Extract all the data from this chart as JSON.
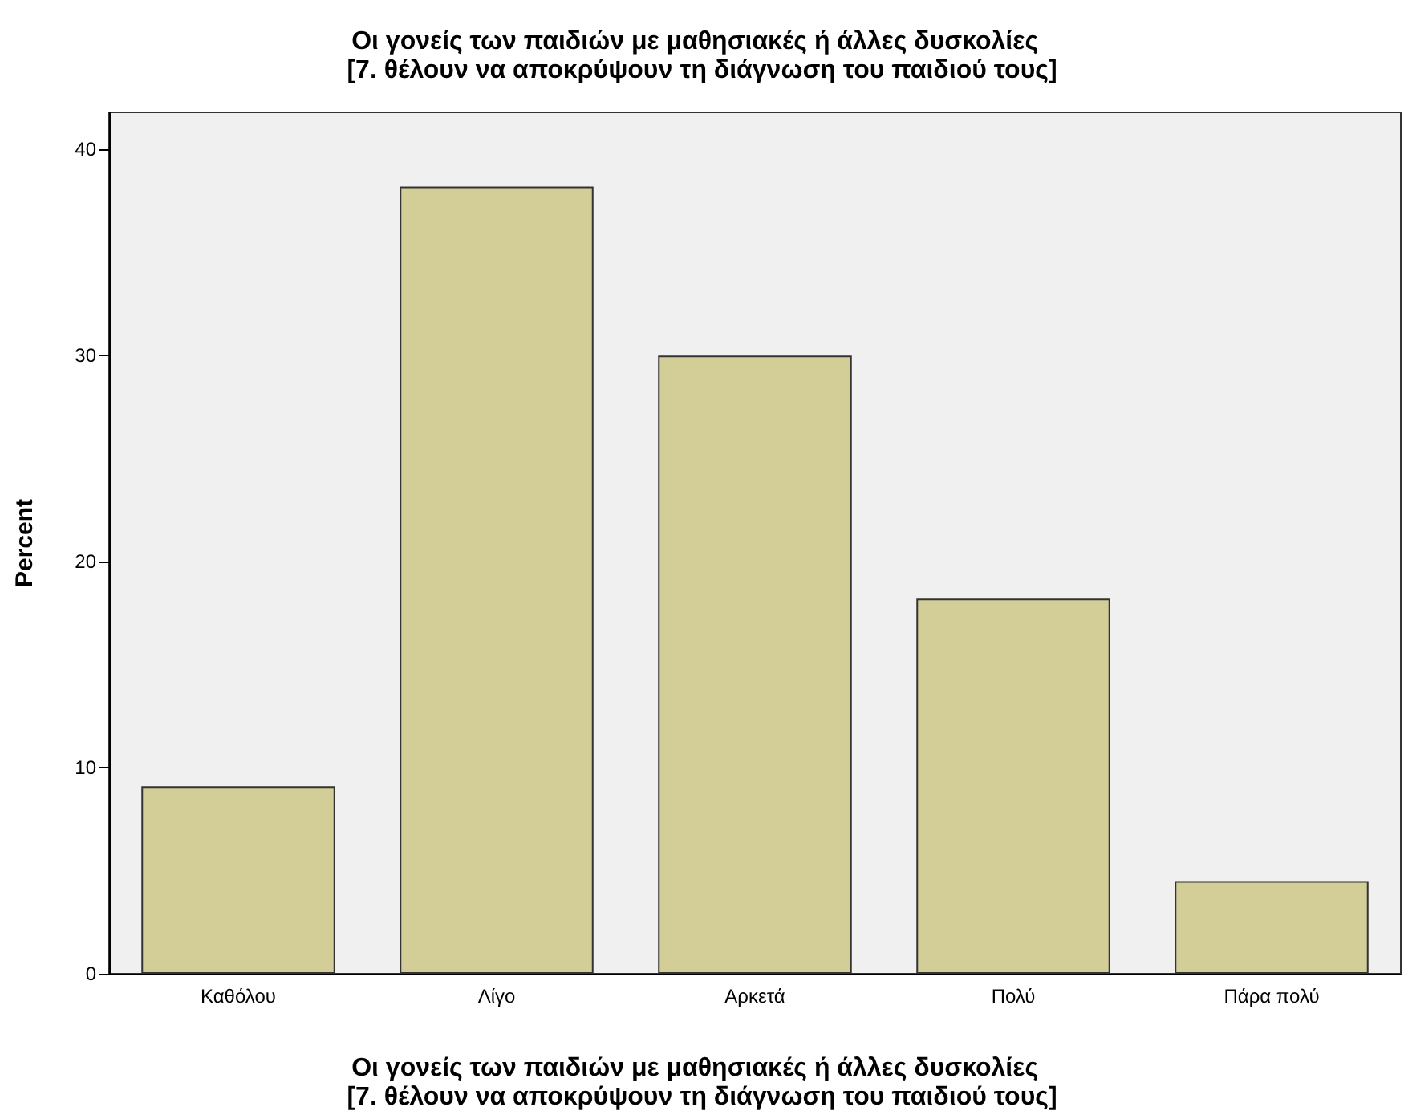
{
  "chart_data": {
    "type": "bar",
    "title": "Οι γονείς των παιδιών με μαθησιακές ή άλλες δυσκολίες  [7. θέλουν να αποκρύψουν τη διάγνωση του παιδιού τους]",
    "xlabel": "Οι γονείς των παιδιών με μαθησιακές ή άλλες δυσκολίες  [7. θέλουν να αποκρύψουν τη διάγνωση του παιδιού τους]",
    "ylabel": "Percent",
    "categories": [
      "Καθόλου",
      "Λίγο",
      "Αρκετά",
      "Πολύ",
      "Πάρα πολύ"
    ],
    "values": [
      9.1,
      38.2,
      30.0,
      18.2,
      4.5
    ],
    "color": "#d3ce97",
    "ylim": [
      0,
      41.8
    ],
    "yticks": [
      0,
      10,
      20,
      30,
      40
    ],
    "grid": false
  }
}
